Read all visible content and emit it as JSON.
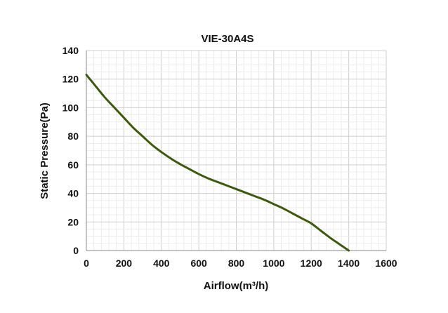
{
  "chart_data": {
    "type": "line",
    "title": "VIE-30A4S",
    "xlabel": "Airflow(m³/h)",
    "ylabel": "Static Pressure(Pa)",
    "xlim": [
      0,
      1600
    ],
    "ylim": [
      0,
      140
    ],
    "x_ticks": [
      "0",
      "200",
      "400",
      "600",
      "800",
      "1000",
      "1200",
      "1400",
      "1600"
    ],
    "y_ticks": [
      "0",
      "20",
      "40",
      "60",
      "80",
      "100",
      "120",
      "140"
    ],
    "grid": true,
    "series": [
      {
        "color": "#3d5a0c",
        "x": [
          0,
          50,
          100,
          150,
          200,
          250,
          300,
          350,
          400,
          450,
          500,
          550,
          600,
          650,
          700,
          750,
          800,
          850,
          900,
          950,
          1000,
          1050,
          1100,
          1150,
          1200,
          1250,
          1300,
          1350,
          1400
        ],
        "y": [
          123,
          115,
          107,
          100,
          93,
          86,
          80,
          74,
          69,
          64.5,
          60.5,
          57,
          53.5,
          50.5,
          48,
          45.5,
          43,
          40.5,
          38,
          35.5,
          32.5,
          29.5,
          26,
          22.5,
          19,
          14,
          9,
          4.5,
          0
        ]
      }
    ]
  }
}
